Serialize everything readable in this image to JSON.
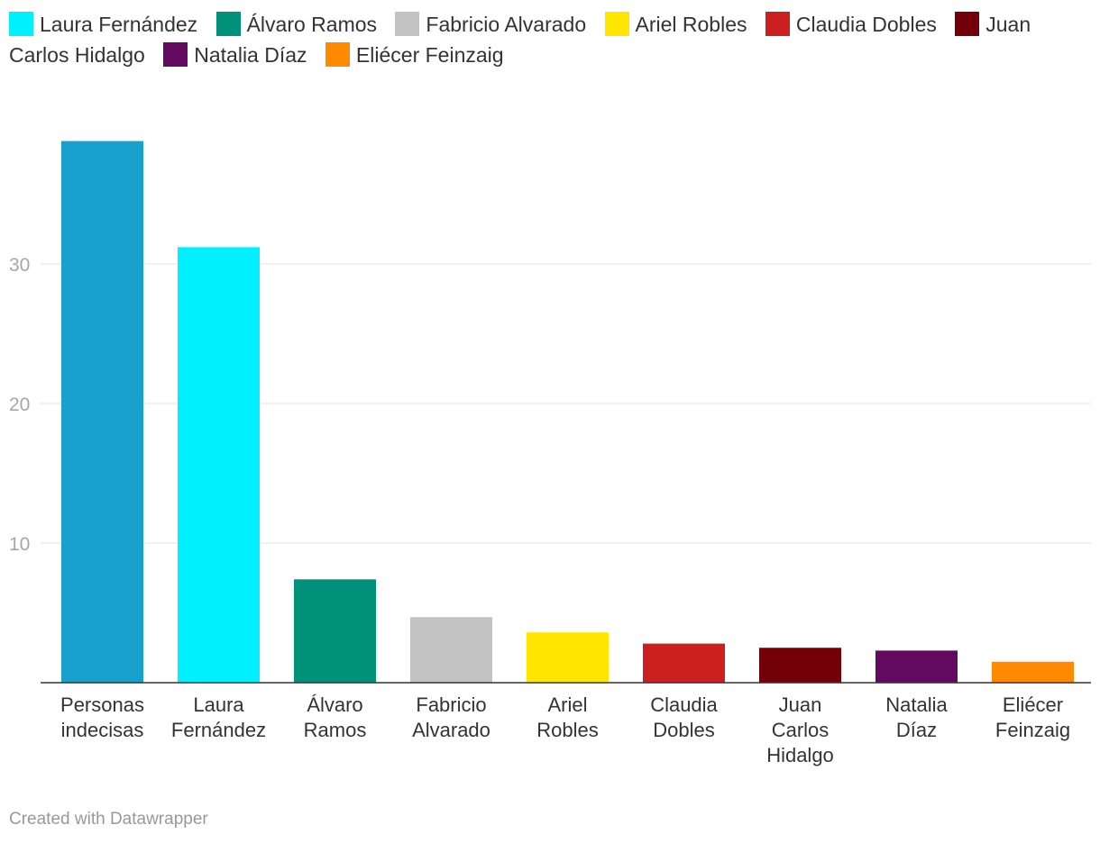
{
  "legend": [
    {
      "label": "Laura Fernández",
      "color": "#00f0ff"
    },
    {
      "label": "Álvaro Ramos",
      "color": "#00917a"
    },
    {
      "label": "Fabricio Alvarado",
      "color": "#c3c3c3"
    },
    {
      "label": "Ariel Robles",
      "color": "#ffe600"
    },
    {
      "label": "Claudia Dobles",
      "color": "#cc1f1f"
    },
    {
      "label": "Juan Carlos Hidalgo",
      "color": "#730008"
    },
    {
      "label": "Natalia Díaz",
      "color": "#620a5f"
    },
    {
      "label": "Eliécer Feinzaig",
      "color": "#ff8a00"
    }
  ],
  "chart_data": {
    "type": "bar",
    "title": "",
    "xlabel": "",
    "ylabel": "",
    "ylim": [
      0,
      40
    ],
    "yticks": [
      10,
      20,
      30
    ],
    "grid": true,
    "legend_position": "top",
    "categories": [
      [
        "Personas",
        "indecisas"
      ],
      [
        "Laura",
        "Fernández"
      ],
      [
        "Álvaro",
        "Ramos"
      ],
      [
        "Fabricio",
        "Alvarado"
      ],
      [
        "Ariel",
        "Robles"
      ],
      [
        "Claudia",
        "Dobles"
      ],
      [
        "Juan",
        "Carlos",
        "Hidalgo"
      ],
      [
        "Natalia",
        "Díaz"
      ],
      [
        "Eliécer",
        "Feinzaig"
      ]
    ],
    "values": [
      38.8,
      31.2,
      7.4,
      4.7,
      3.6,
      2.8,
      2.5,
      2.3,
      1.5
    ],
    "colors": [
      "#18a1cd",
      "#00f0ff",
      "#00917a",
      "#c3c3c3",
      "#ffe600",
      "#cc1f1f",
      "#730008",
      "#620a5f",
      "#ff8a00"
    ]
  },
  "footer": "Created with Datawrapper"
}
